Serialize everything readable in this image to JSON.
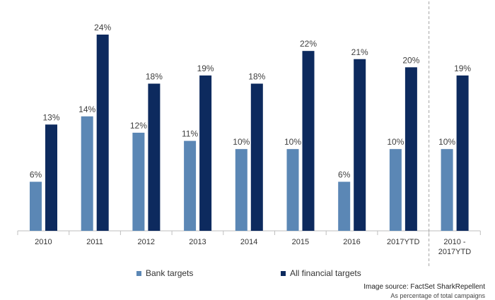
{
  "chart_data": {
    "type": "bar",
    "categories": [
      "2010",
      "2011",
      "2012",
      "2013",
      "2014",
      "2015",
      "2016",
      "2017YTD",
      "2010 - 2017YTD"
    ],
    "category_lines": [
      [
        "2010"
      ],
      [
        "2011"
      ],
      [
        "2012"
      ],
      [
        "2013"
      ],
      [
        "2014"
      ],
      [
        "2015"
      ],
      [
        "2016"
      ],
      [
        "2017YTD"
      ],
      [
        "2010 -",
        "2017YTD"
      ]
    ],
    "series": [
      {
        "name": "Bank targets",
        "color": "#5b87b5",
        "values": [
          6,
          14,
          12,
          11,
          10,
          10,
          6,
          10,
          10
        ],
        "labels": [
          "6%",
          "14%",
          "12%",
          "11%",
          "10%",
          "10%",
          "6%",
          "10%",
          "10%"
        ]
      },
      {
        "name": "All financial targets",
        "color": "#0d2a5e",
        "values": [
          13,
          24,
          18,
          19,
          18,
          22,
          21,
          20,
          19
        ],
        "labels": [
          "13%",
          "24%",
          "18%",
          "19%",
          "18%",
          "22%",
          "21%",
          "20%",
          "19%"
        ]
      }
    ],
    "ylim": [
      0,
      24
    ],
    "grid": false,
    "legend_position": "bottom",
    "separator_before_category": 8
  },
  "source": {
    "line1": "Image source: FactSet SharkRepellent",
    "line2": "As percentage of total campaigns"
  }
}
